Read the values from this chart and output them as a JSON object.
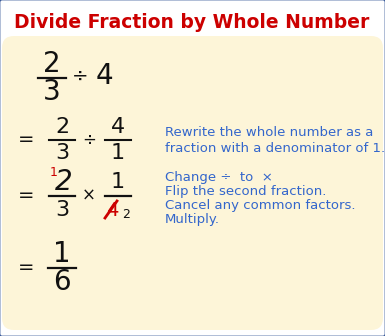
{
  "title": "Divide Fraction by Whole Number",
  "title_color": "#cc0000",
  "title_fontsize": 13.5,
  "bg_color": "#fdf5d8",
  "outer_bg": "#ffffff",
  "border_color": "#3a5a9a",
  "blue_text": "#3366cc",
  "black_text": "#111111",
  "red_text": "#cc0000",
  "annotation1_line1": "Rewrite the whole number as a",
  "annotation1_line2": "fraction with a denominator of 1.",
  "annotation2_line1": "Change ÷  to  ×",
  "annotation2_line2": "Flip the second fraction.",
  "annotation2_line3": "Cancel any common factors.",
  "annotation2_line4": "Multiply."
}
